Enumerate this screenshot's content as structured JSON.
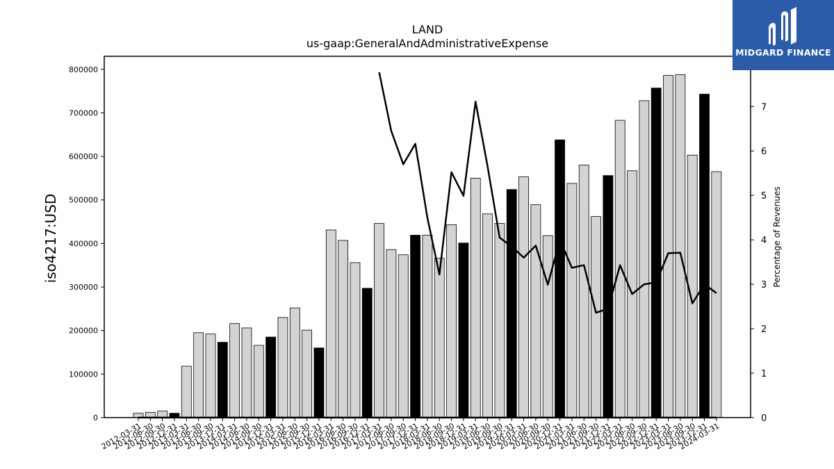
{
  "chart_data": {
    "type": "bar",
    "title": "LAND",
    "subtitle": "us-gaap:GeneralAndAdministrativeExpense",
    "ylabel": "iso4217:USD",
    "y2label": "Percentage of Revenues",
    "ylim": [
      0,
      830000
    ],
    "y2lim": [
      0,
      8.13
    ],
    "yticks": [
      0,
      100000,
      200000,
      300000,
      400000,
      500000,
      600000,
      700000,
      800000
    ],
    "y2ticks": [
      0,
      1,
      2,
      3,
      4,
      5,
      6,
      7
    ],
    "categories": [
      "2012-03-31",
      "2012-06-30",
      "2012-09-30",
      "2012-12-31",
      "2013-03-31",
      "2013-06-30",
      "2013-09-30",
      "2013-12-31",
      "2014-03-31",
      "2014-06-30",
      "2014-09-30",
      "2014-12-31",
      "2015-03-31",
      "2015-06-30",
      "2015-09-30",
      "2015-12-31",
      "2016-03-31",
      "2016-06-30",
      "2016-09-30",
      "2016-12-31",
      "2017-03-31",
      "2017-06-30",
      "2017-09-30",
      "2017-12-31",
      "2018-03-31",
      "2018-06-30",
      "2018-09-30",
      "2018-12-31",
      "2019-03-31",
      "2019-06-30",
      "2019-09-30",
      "2019-12-31",
      "2020-03-31",
      "2020-06-30",
      "2020-09-30",
      "2020-12-31",
      "2021-03-31",
      "2021-06-30",
      "2021-09-30",
      "2021-12-31",
      "2022-03-31",
      "2022-06-30",
      "2022-09-30",
      "2022-12-31",
      "2023-03-31",
      "2023-06-30",
      "2023-09-30",
      "2023-12-31",
      "2024-03-31"
    ],
    "values": [
      10000,
      12000,
      15000,
      10000,
      118000,
      195000,
      192000,
      173000,
      216000,
      206000,
      166000,
      185000,
      230000,
      252000,
      201000,
      160000,
      431000,
      407000,
      356000,
      297000,
      446000,
      386000,
      374000,
      419000,
      419000,
      366000,
      443000,
      401000,
      550000,
      468000,
      446000,
      524000,
      553000,
      489000,
      418000,
      638000,
      538000,
      580000,
      462000,
      556000,
      683000,
      567000,
      728000,
      757000,
      786000,
      788000,
      603000,
      743000,
      565000
    ],
    "highlight": [
      false,
      false,
      false,
      true,
      false,
      false,
      false,
      true,
      false,
      false,
      false,
      true,
      false,
      false,
      false,
      true,
      false,
      false,
      false,
      true,
      false,
      false,
      false,
      true,
      false,
      false,
      false,
      true,
      false,
      false,
      false,
      true,
      false,
      false,
      false,
      true,
      false,
      false,
      false,
      true,
      false,
      false,
      false,
      true,
      false,
      false,
      false,
      true,
      false
    ],
    "series_line": [
      null,
      null,
      null,
      null,
      null,
      null,
      null,
      null,
      null,
      null,
      null,
      null,
      null,
      null,
      null,
      null,
      null,
      null,
      null,
      null,
      7.77,
      6.45,
      5.7,
      6.16,
      4.5,
      3.22,
      5.52,
      4.99,
      7.11,
      5.65,
      4.05,
      3.85,
      3.6,
      3.87,
      2.99,
      4.0,
      3.37,
      3.43,
      2.36,
      2.45,
      3.43,
      2.78,
      3.0,
      3.04,
      3.7,
      3.71,
      2.57,
      3.0,
      2.8
    ],
    "colors": {
      "bar": "#d3d3d3",
      "bar_highlight": "#000000",
      "line": "#000000",
      "logo_bg": "#2a5caa"
    }
  },
  "logo": {
    "text": "MIDGARD FINANCE"
  }
}
